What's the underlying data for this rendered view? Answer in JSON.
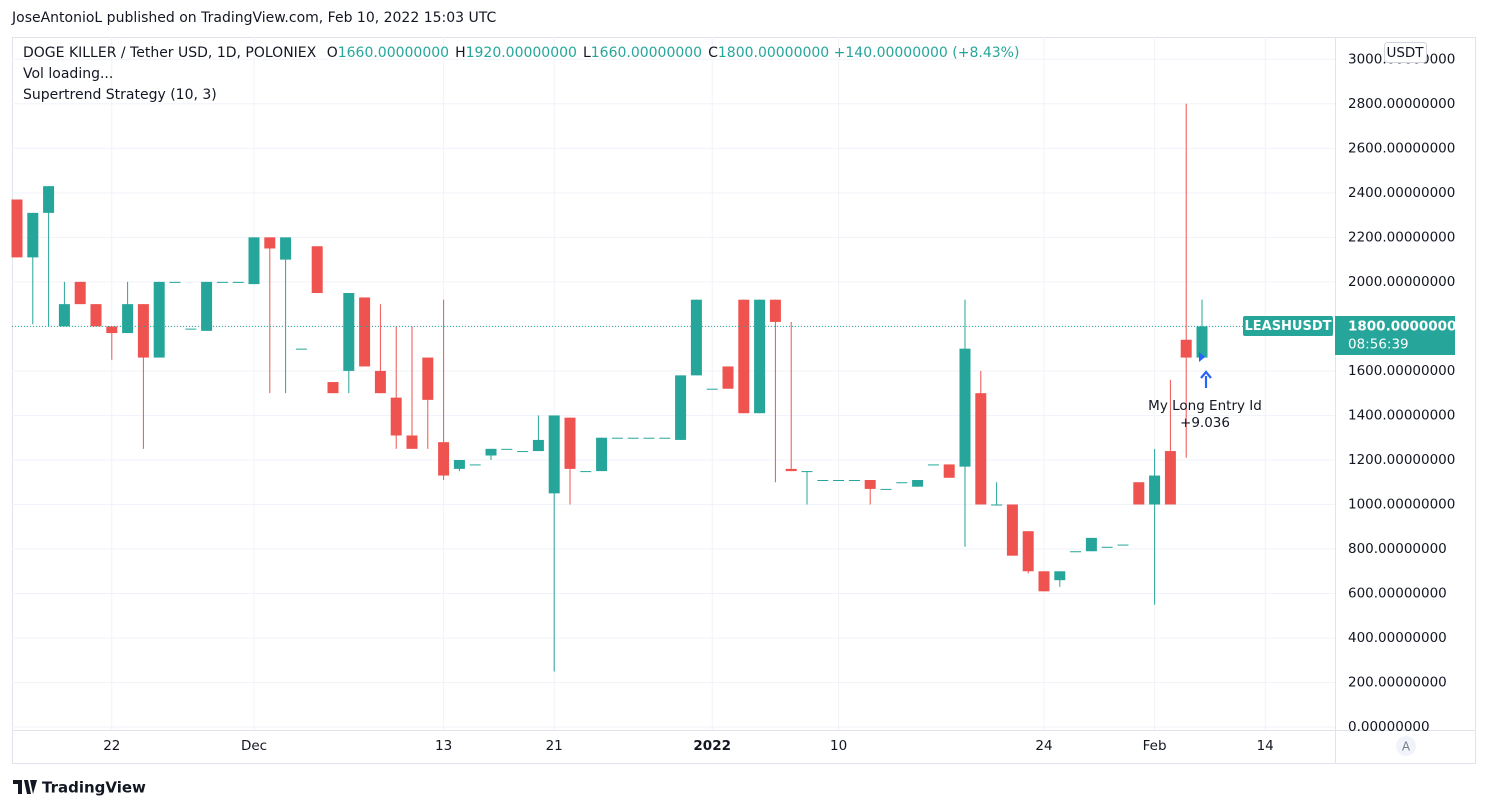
{
  "header": {
    "publisher": "JoseAntonioL published on TradingView.com, Feb 10, 2022 15:03 UTC",
    "brand": "TradingView"
  },
  "chart_data": {
    "type": "candlestick",
    "symbol": "DOGE KILLER / Tether USD, 1D, POLONIEX",
    "legend_values": [
      {
        "prefix": "O",
        "value": "1660.00000000"
      },
      {
        "prefix": "H",
        "value": "1920.00000000"
      },
      {
        "prefix": "L",
        "value": "1660.00000000"
      },
      {
        "prefix": "C",
        "value": "1800.00000000"
      }
    ],
    "change": "+140.00000000 (+8.43%)",
    "indicators": [
      "Vol loading...",
      "Supertrend Strategy (10, 3)"
    ],
    "currency": "USDT",
    "ticker": "LEASHUSDT",
    "last_price_label": "1800.00000000",
    "countdown": "08:56:39",
    "annotation": {
      "label": "My Long Entry Id",
      "value": "+9.036"
    },
    "scale_mode": "A",
    "up_color": "#26a69a",
    "down_color": "#ef5350",
    "grid": true,
    "categories": [
      null,
      null,
      null,
      null,
      null,
      null,
      "22",
      null,
      null,
      null,
      null,
      null,
      null,
      null,
      null,
      "Dec",
      null,
      null,
      null,
      null,
      null,
      null,
      null,
      null,
      null,
      null,
      null,
      "13",
      null,
      null,
      null,
      null,
      null,
      null,
      "21",
      null,
      null,
      null,
      null,
      null,
      null,
      null,
      null,
      null,
      "2022",
      null,
      null,
      null,
      null,
      null,
      null,
      null,
      "10",
      null,
      null,
      null,
      null,
      null,
      null,
      null,
      null,
      null,
      null,
      null,
      null,
      "24",
      null,
      null,
      null,
      null,
      null,
      null,
      "Feb",
      null,
      null,
      null,
      null,
      null,
      null,
      "14"
    ],
    "open": [
      2370,
      2110,
      2310,
      1800,
      2000,
      1900,
      1800,
      1770,
      1900,
      1660,
      2000,
      1790,
      1780,
      2000,
      2000,
      1990,
      2200,
      2100,
      1700,
      2160,
      1550,
      1600,
      1930,
      1600,
      1480,
      1310,
      1660,
      1280,
      1160,
      1180,
      1220,
      1250,
      1240,
      1240,
      1050,
      1390,
      1150,
      1150,
      1300,
      1300,
      1300,
      1300,
      1290,
      1580,
      1520,
      1620,
      1920,
      1410,
      1920,
      1160,
      1150,
      1110,
      1110,
      1110,
      1110,
      1070,
      1100,
      1080,
      1180,
      1180,
      1170,
      1500,
      1000,
      1000,
      880,
      700,
      660,
      790,
      790,
      810,
      820,
      1100,
      1000,
      1240,
      1740,
      1660,
      null,
      null,
      null,
      null
    ],
    "high": [
      2370,
      2310,
      2430,
      2000,
      2000,
      1900,
      1800,
      2000,
      1900,
      2000,
      2000,
      1790,
      2000,
      2000,
      2000,
      2200,
      2200,
      2200,
      1700,
      2160,
      1550,
      1950,
      1930,
      1900,
      1800,
      1800,
      1660,
      1920,
      1200,
      1180,
      1250,
      1250,
      1240,
      1400,
      1400,
      1390,
      1150,
      1300,
      1300,
      1300,
      1300,
      1300,
      1580,
      1920,
      1520,
      1620,
      1920,
      1920,
      1920,
      1820,
      1150,
      1110,
      1110,
      1110,
      1110,
      1070,
      1100,
      1110,
      1180,
      1180,
      1920,
      1600,
      1100,
      1000,
      880,
      700,
      700,
      790,
      850,
      810,
      820,
      1100,
      1250,
      1560,
      2800,
      1920,
      null,
      null,
      null,
      null
    ],
    "low": [
      2110,
      1810,
      1800,
      1800,
      1900,
      1800,
      1650,
      1770,
      1250,
      1660,
      2000,
      1790,
      1780,
      2000,
      2000,
      1990,
      1500,
      1500,
      1700,
      1950,
      1500,
      1500,
      1620,
      1500,
      1250,
      1250,
      1250,
      1110,
      1150,
      1180,
      1200,
      1250,
      1240,
      1240,
      250,
      1000,
      1150,
      1150,
      1300,
      1300,
      1300,
      1300,
      1290,
      1580,
      1520,
      1520,
      1410,
      1410,
      1100,
      1150,
      1000,
      1110,
      1110,
      1110,
      1000,
      1070,
      1100,
      1080,
      1180,
      1120,
      810,
      1000,
      1000,
      770,
      690,
      610,
      630,
      790,
      790,
      810,
      820,
      1000,
      550,
      1000,
      1210,
      1660,
      null,
      null,
      null,
      null
    ],
    "close": [
      2110,
      2310,
      2430,
      1900,
      1900,
      1800,
      1770,
      1900,
      1660,
      2000,
      2000,
      1790,
      2000,
      2000,
      2000,
      2200,
      2150,
      2200,
      1700,
      1950,
      1500,
      1950,
      1620,
      1500,
      1310,
      1250,
      1470,
      1130,
      1200,
      1180,
      1250,
      1250,
      1240,
      1290,
      1400,
      1160,
      1150,
      1300,
      1300,
      1300,
      1300,
      1300,
      1580,
      1920,
      1520,
      1520,
      1410,
      1920,
      1820,
      1150,
      1150,
      1110,
      1110,
      1110,
      1070,
      1070,
      1100,
      1110,
      1180,
      1120,
      1700,
      1000,
      1000,
      770,
      700,
      610,
      700,
      790,
      850,
      810,
      820,
      1000,
      1130,
      1000,
      1660,
      1800,
      null,
      null,
      null,
      null
    ],
    "ylim": [
      -13,
      3100
    ],
    "yticks": [
      {
        "value": 0,
        "label": "0.00000000"
      },
      {
        "value": 200,
        "label": "200.00000000"
      },
      {
        "value": 400,
        "label": "400.00000000"
      },
      {
        "value": 600,
        "label": "600.00000000"
      },
      {
        "value": 800,
        "label": "800.00000000"
      },
      {
        "value": 1000,
        "label": "1000.00000000"
      },
      {
        "value": 1200,
        "label": "1200.00000000"
      },
      {
        "value": 1400,
        "label": "1400.00000000"
      },
      {
        "value": 1600,
        "label": "1600.00000000"
      },
      {
        "value": 1800,
        "label": "1800.00000000"
      },
      {
        "value": 2000,
        "label": "2000.00000000"
      },
      {
        "value": 2200,
        "label": "2200.00000000"
      },
      {
        "value": 2400,
        "label": "2400.00000000"
      },
      {
        "value": 2600,
        "label": "2600.00000000"
      },
      {
        "value": 2800,
        "label": "2800.00000000"
      },
      {
        "value": 3000,
        "label": "3000.00000000"
      }
    ]
  }
}
